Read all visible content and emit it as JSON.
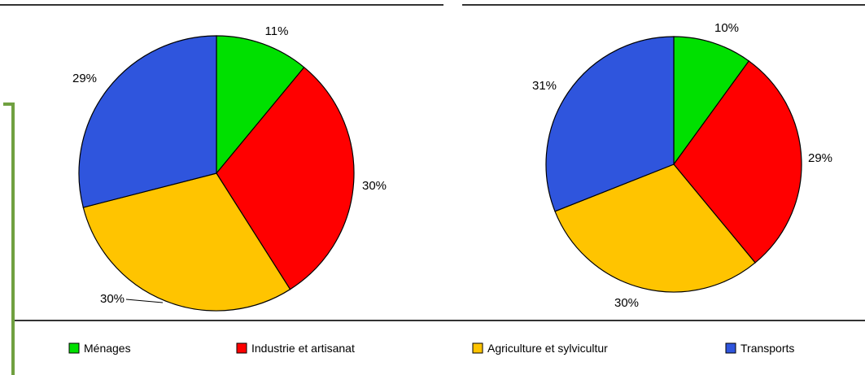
{
  "chart_data": [
    {
      "type": "pie",
      "start": "top",
      "direction": "clockwise",
      "slices": [
        {
          "name": "Ménages",
          "value": 11,
          "label": "11%",
          "color": "#00e000"
        },
        {
          "name": "Industrie et artisanat",
          "value": 30,
          "label": "30%",
          "color": "#ff0000"
        },
        {
          "name": "Agriculture et sylvicultur",
          "value": 30,
          "label": "30%",
          "color": "#ffc400"
        },
        {
          "name": "Transports",
          "value": 29,
          "label": "29%",
          "color": "#2f55dd"
        }
      ]
    },
    {
      "type": "pie",
      "start": "top",
      "direction": "clockwise",
      "slices": [
        {
          "name": "Ménages",
          "value": 10,
          "label": "10%",
          "color": "#00e000"
        },
        {
          "name": "Industrie et artisanat",
          "value": 29,
          "label": "29%",
          "color": "#ff0000"
        },
        {
          "name": "Agriculture et sylvicultur",
          "value": 30,
          "label": "30%",
          "color": "#ffc400"
        },
        {
          "name": "Transports",
          "value": 31,
          "label": "31%",
          "color": "#2f55dd"
        }
      ]
    }
  ],
  "legend": {
    "placement": "bottom",
    "items": [
      {
        "label": "Ménages",
        "color": "#00e000"
      },
      {
        "label": "Industrie et artisanat",
        "color": "#ff0000"
      },
      {
        "label": "Agriculture et sylvicultur",
        "color": "#ffc400"
      },
      {
        "label": "Transports",
        "color": "#2f55dd"
      }
    ]
  }
}
